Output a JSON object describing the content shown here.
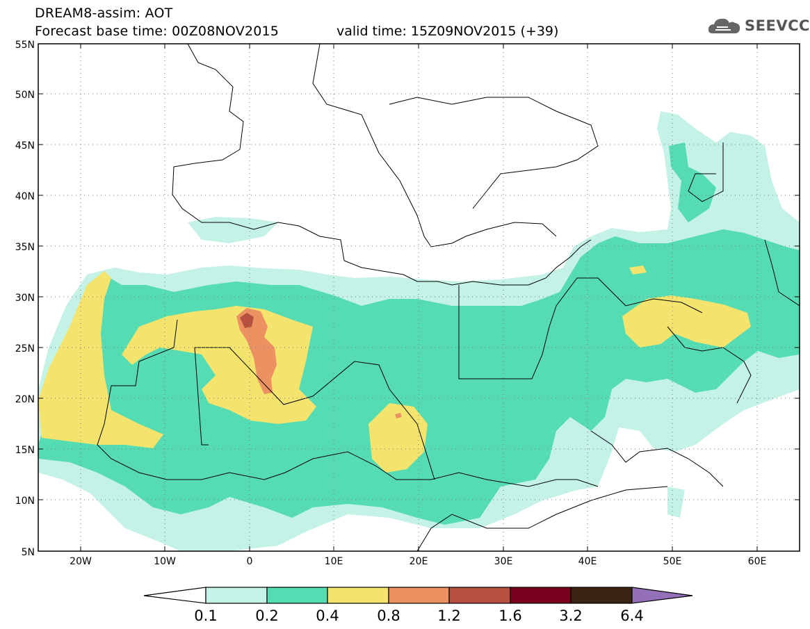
{
  "header": {
    "title": "DREAM8-assim: AOT",
    "base_time": "Forecast base time: 00Z08NOV2015",
    "valid_time": "valid time: 15Z09NOV2015 (+39)"
  },
  "logo": {
    "text": "SEEVCCC",
    "icon": "cloud-icon"
  },
  "map": {
    "lat_labels": [
      "55N",
      "50N",
      "45N",
      "40N",
      "35N",
      "30N",
      "25N",
      "20N",
      "15N",
      "10N",
      "5N"
    ],
    "lon_labels": [
      "20W",
      "10W",
      "0",
      "10E",
      "20E",
      "30E",
      "40E",
      "50E",
      "60E"
    ]
  },
  "colorbar": {
    "labels": [
      "0.1",
      "0.2",
      "0.4",
      "0.8",
      "1.2",
      "1.6",
      "3.2",
      "6.4"
    ],
    "colors": [
      "#ffffff",
      "#c4f2e6",
      "#55dcb2",
      "#f4e46e",
      "#ec9262",
      "#b85040",
      "#7a0020",
      "#3c2412",
      "#9370b8"
    ]
  },
  "legend_colors": {
    "low": "#c4f2e6",
    "moderate": "#55dcb2",
    "high": "#f4e46e",
    "very_high": "#ec9262",
    "extreme": "#b85040"
  }
}
